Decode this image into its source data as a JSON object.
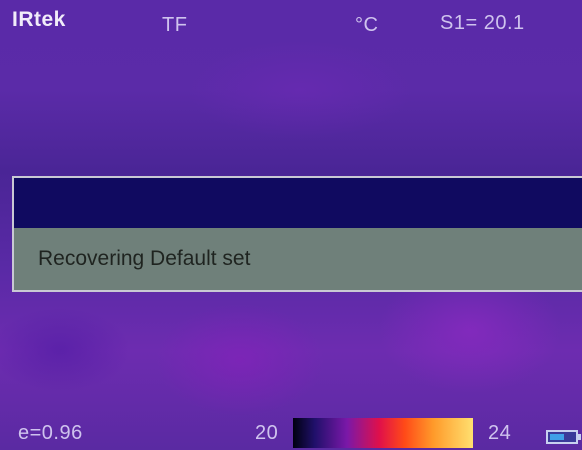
{
  "header": {
    "brand": "IRtek",
    "mode": "TF",
    "unit": "°C",
    "spot_reading": "S1= 20.1"
  },
  "dialog": {
    "title": "",
    "message": "Recovering Default set"
  },
  "footer": {
    "emissivity": "e=0.96",
    "scale_min": "20",
    "scale_max": "24",
    "battery_level": 0.6
  },
  "colors": {
    "dialog_titlebar": "#100a60",
    "dialog_body": "#6f807a",
    "background": "#5a2aa8"
  },
  "icons": {
    "battery": "battery-icon",
    "palette": "color-palette-scale"
  }
}
